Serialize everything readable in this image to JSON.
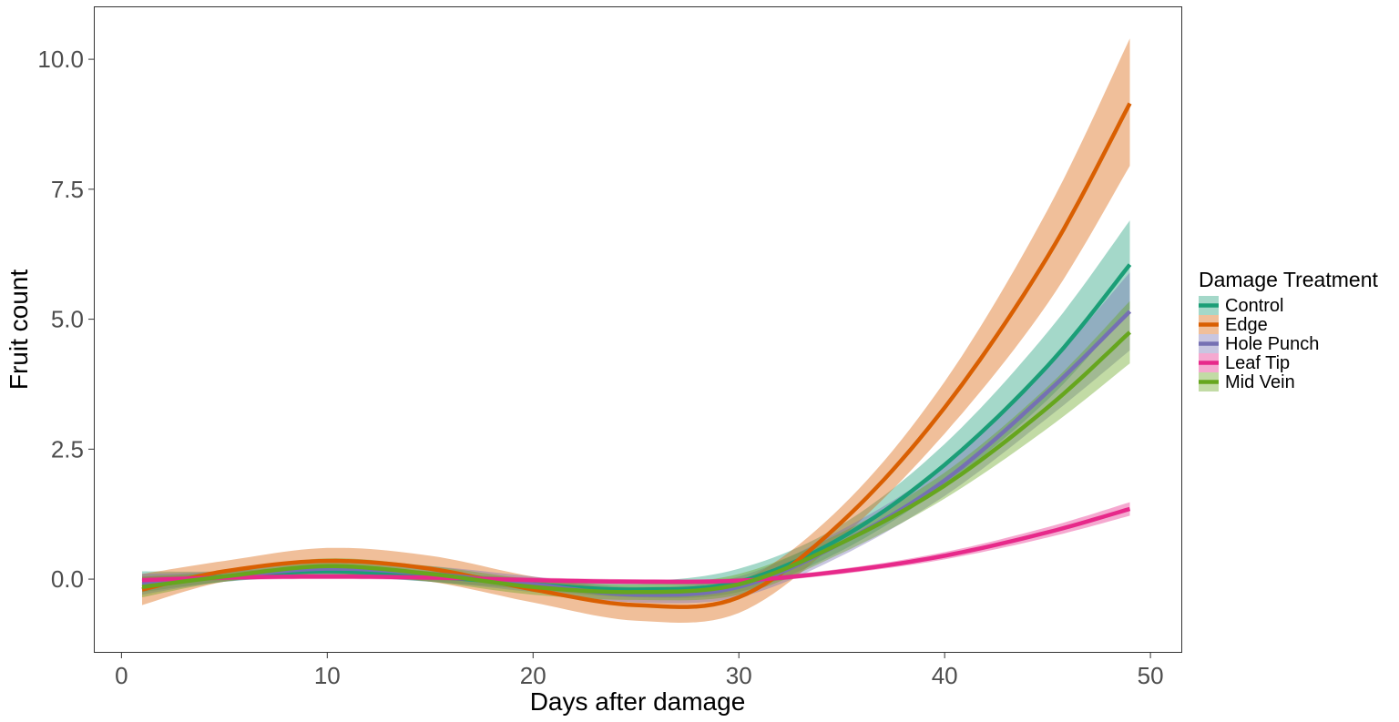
{
  "chart_data": {
    "type": "line",
    "xlabel": "Days after damage",
    "ylabel": "Fruit count",
    "xlim": [
      -1.3,
      51.5
    ],
    "ylim": [
      -1.4,
      11.0
    ],
    "x_ticks": [
      0,
      10,
      20,
      30,
      40,
      50
    ],
    "y_ticks": [
      0.0,
      2.5,
      5.0,
      7.5,
      10.0
    ],
    "x_tick_labels": [
      "0",
      "10",
      "20",
      "30",
      "40",
      "50"
    ],
    "y_tick_labels": [
      "0.0",
      "2.5",
      "5.0",
      "7.5",
      "10.0"
    ],
    "grid": false,
    "legend": {
      "title": "Damage Treatment",
      "position": "right"
    },
    "x": [
      1,
      5,
      10,
      15,
      20,
      25,
      30,
      35,
      40,
      45,
      49
    ],
    "series": [
      {
        "name": "Control",
        "color": "#1b9e77",
        "y": [
          -0.05,
          0.05,
          0.15,
          0.05,
          -0.1,
          -0.2,
          -0.05,
          0.8,
          2.2,
          4.1,
          6.05
        ],
        "lower": [
          -0.25,
          -0.05,
          0.05,
          -0.05,
          -0.2,
          -0.35,
          -0.25,
          0.55,
          1.8,
          3.45,
          5.2
        ],
        "upper": [
          0.15,
          0.15,
          0.25,
          0.15,
          0.0,
          -0.05,
          0.2,
          1.05,
          2.6,
          4.75,
          6.9
        ]
      },
      {
        "name": "Edge",
        "color": "#d95f02",
        "y": [
          -0.2,
          0.15,
          0.35,
          0.2,
          -0.2,
          -0.5,
          -0.35,
          1.1,
          3.3,
          6.2,
          9.15
        ],
        "lower": [
          -0.5,
          -0.05,
          0.1,
          -0.05,
          -0.45,
          -0.8,
          -0.65,
          0.8,
          2.8,
          5.3,
          7.95
        ],
        "upper": [
          0.1,
          0.35,
          0.6,
          0.45,
          0.05,
          -0.2,
          -0.05,
          1.4,
          3.8,
          7.1,
          10.4
        ]
      },
      {
        "name": "Hole Punch",
        "color": "#7570b3",
        "y": [
          -0.1,
          0.05,
          0.2,
          0.1,
          -0.1,
          -0.3,
          -0.15,
          0.7,
          1.9,
          3.6,
          5.15
        ],
        "lower": [
          -0.3,
          -0.05,
          0.05,
          -0.05,
          -0.25,
          -0.45,
          -0.35,
          0.45,
          1.6,
          3.1,
          4.4
        ],
        "upper": [
          0.1,
          0.15,
          0.35,
          0.25,
          0.05,
          -0.15,
          0.05,
          0.95,
          2.2,
          4.1,
          5.9
        ]
      },
      {
        "name": "Leaf Tip",
        "color": "#e7298a",
        "y": [
          -0.02,
          0.03,
          0.05,
          0.03,
          -0.02,
          -0.05,
          -0.03,
          0.15,
          0.45,
          0.9,
          1.35
        ],
        "lower": [
          -0.08,
          -0.02,
          0.0,
          -0.02,
          -0.07,
          -0.1,
          -0.08,
          0.1,
          0.38,
          0.8,
          1.22
        ],
        "upper": [
          0.04,
          0.08,
          0.1,
          0.08,
          0.03,
          0.0,
          0.02,
          0.2,
          0.52,
          1.0,
          1.48
        ]
      },
      {
        "name": "Mid Vein",
        "color": "#66a61e",
        "y": [
          -0.15,
          0.05,
          0.25,
          0.1,
          -0.15,
          -0.25,
          -0.1,
          0.7,
          1.8,
          3.3,
          4.75
        ],
        "lower": [
          -0.35,
          -0.05,
          0.1,
          -0.05,
          -0.3,
          -0.4,
          -0.3,
          0.5,
          1.55,
          2.9,
          4.15
        ],
        "upper": [
          0.05,
          0.15,
          0.4,
          0.25,
          0.0,
          -0.1,
          0.1,
          0.9,
          2.05,
          3.7,
          5.35
        ]
      }
    ]
  }
}
